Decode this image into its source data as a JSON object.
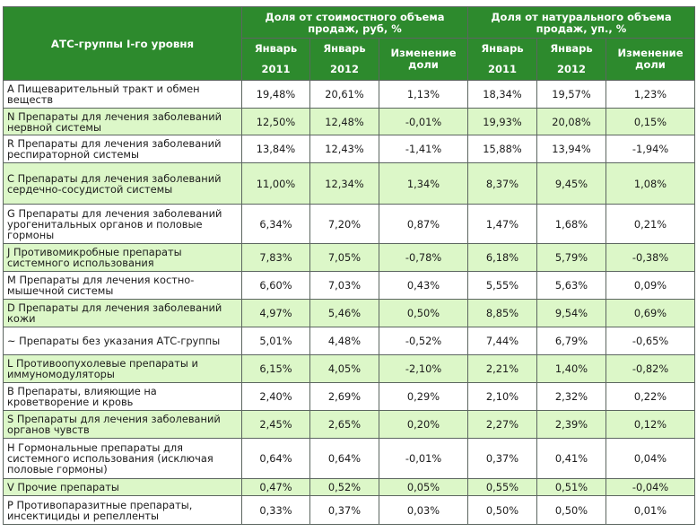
{
  "table": {
    "header": {
      "first_col": "АТС-группы I-го уровня",
      "group_value": "Доля от стоимостного объема продаж, руб, %",
      "group_volume": "Доля от натурального объема продаж, уп., %",
      "jan": "Январь",
      "y2011": "2011",
      "y2012": "2012",
      "change": "Изменение доли"
    },
    "rows": [
      {
        "name": "A Пищеварительный тракт и обмен веществ",
        "v11": "19,48%",
        "v12": "20,61%",
        "vch": "1,13%",
        "n11": "18,34%",
        "n12": "19,57%",
        "nch": "1,23%"
      },
      {
        "name": "N Препараты для лечения заболеваний нервной системы",
        "v11": "12,50%",
        "v12": "12,48%",
        "vch": "-0,01%",
        "n11": "19,93%",
        "n12": "20,08%",
        "nch": "0,15%"
      },
      {
        "name": "R Препараты для лечения заболеваний респираторной системы",
        "v11": "13,84%",
        "v12": "12,43%",
        "vch": "-1,41%",
        "n11": "15,88%",
        "n12": "13,94%",
        "nch": "-1,94%"
      },
      {
        "name": "C Препараты для лечения заболеваний сердечно-сосудистой системы",
        "v11": "11,00%",
        "v12": "12,34%",
        "vch": "1,34%",
        "n11": "8,37%",
        "n12": "9,45%",
        "nch": "1,08%"
      },
      {
        "name": "G Препараты для лечения заболеваний урогенитальных органов и половые гормоны",
        "v11": "6,34%",
        "v12": "7,20%",
        "vch": "0,87%",
        "n11": "1,47%",
        "n12": "1,68%",
        "nch": "0,21%"
      },
      {
        "name": "J Противомикробные препараты системного использования",
        "v11": "7,83%",
        "v12": "7,05%",
        "vch": "-0,78%",
        "n11": "6,18%",
        "n12": "5,79%",
        "nch": "-0,38%"
      },
      {
        "name": "M Препараты для лечения костно-мышечной системы",
        "v11": "6,60%",
        "v12": "7,03%",
        "vch": "0,43%",
        "n11": "5,55%",
        "n12": "5,63%",
        "nch": "0,09%"
      },
      {
        "name": "D Препараты для лечения заболеваний кожи",
        "v11": "4,97%",
        "v12": "5,46%",
        "vch": "0,50%",
        "n11": "8,85%",
        "n12": "9,54%",
        "nch": "0,69%"
      },
      {
        "name": "~ Препараты без указания АТС-группы",
        "v11": "5,01%",
        "v12": "4,48%",
        "vch": "-0,52%",
        "n11": "7,44%",
        "n12": "6,79%",
        "nch": "-0,65%"
      },
      {
        "name": "L Противоопухолевые препараты и иммуномодуляторы",
        "v11": "6,15%",
        "v12": "4,05%",
        "vch": "-2,10%",
        "n11": "2,21%",
        "n12": "1,40%",
        "nch": "-0,82%"
      },
      {
        "name": "B Препараты, влияющие на кроветворение и кровь",
        "v11": "2,40%",
        "v12": "2,69%",
        "vch": "0,29%",
        "n11": "2,10%",
        "n12": "2,32%",
        "nch": "0,22%"
      },
      {
        "name": "S Препараты для лечения заболеваний органов чувств",
        "v11": "2,45%",
        "v12": "2,65%",
        "vch": "0,20%",
        "n11": "2,27%",
        "n12": "2,39%",
        "nch": "0,12%"
      },
      {
        "name": "H Гормональные препараты для системного использования (исключая половые гормоны)",
        "v11": "0,64%",
        "v12": "0,64%",
        "vch": "-0,01%",
        "n11": "0,37%",
        "n12": "0,41%",
        "nch": "0,04%"
      },
      {
        "name": "V Прочие препараты",
        "v11": "0,47%",
        "v12": "0,52%",
        "vch": "0,05%",
        "n11": "0,55%",
        "n12": "0,51%",
        "nch": "-0,04%"
      },
      {
        "name": "P Противопаразитные препараты, инсектициды и репелленты",
        "v11": "0,33%",
        "v12": "0,37%",
        "vch": "0,03%",
        "n11": "0,50%",
        "n12": "0,50%",
        "nch": "0,01%"
      }
    ]
  }
}
